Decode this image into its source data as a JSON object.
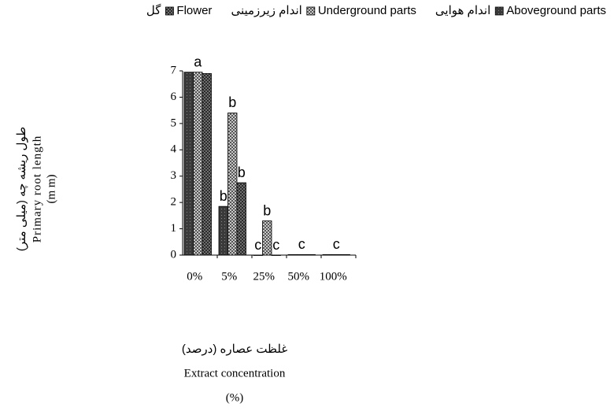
{
  "chart_data": {
    "type": "bar",
    "legend": "top",
    "categories": [
      "0%",
      "5%",
      "25%",
      "50%",
      "100%"
    ],
    "series": [
      {
        "name": "Aboveground parts",
        "name_fa": "اندام هوایی",
        "color": "#3a3a3a",
        "values": [
          6.95,
          1.85,
          0,
          0.02,
          0.02
        ],
        "letters": [
          null,
          "b",
          "c",
          null,
          null
        ]
      },
      {
        "name": "Underground parts",
        "name_fa": "اندام زیرزمینی",
        "color": "#c8c8c8",
        "values": [
          6.95,
          5.4,
          1.3,
          0.02,
          0.02
        ],
        "letters": [
          "a",
          "b",
          "b",
          "c",
          "c"
        ]
      },
      {
        "name": "Flower",
        "name_fa": "گل",
        "color": "#8a8a8a",
        "values": [
          6.9,
          2.75,
          0,
          0.02,
          0.02
        ],
        "letters": [
          null,
          "b",
          "c",
          null,
          null
        ]
      }
    ],
    "ylim": [
      0,
      7
    ],
    "yticks": [
      0,
      1,
      2,
      3,
      4,
      5,
      6,
      7
    ],
    "ylabel": {
      "fa": "طول ریشه چه (میلی متر)",
      "en": "Primary root length",
      "unit": "(m m)"
    },
    "xlabel": {
      "fa": "غلظت عصاره (درصد)",
      "en": "Extract concentration",
      "unit": "(%)"
    }
  }
}
